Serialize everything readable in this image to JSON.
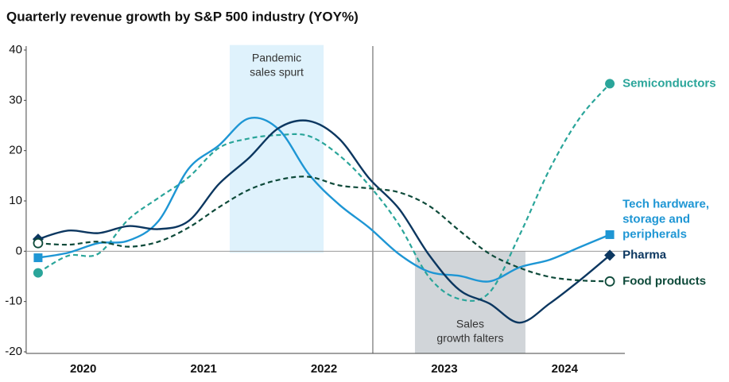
{
  "chart_data": {
    "type": "line",
    "title": "Quarterly revenue growth by S&P 500 industry (YOY%)",
    "x": [
      2020.125,
      2020.375,
      2020.625,
      2020.875,
      2021.125,
      2021.375,
      2021.625,
      2021.875,
      2022.125,
      2022.375,
      2022.625,
      2022.875,
      2023.125,
      2023.375,
      2023.625,
      2023.875,
      2024.125,
      2024.375,
      2024.625,
      2024.875
    ],
    "xlim": [
      2020,
      2025
    ],
    "xticks": [
      {
        "value": 2020.5,
        "label": "2020"
      },
      {
        "value": 2021.5,
        "label": "2021"
      },
      {
        "value": 2022.5,
        "label": "2022"
      },
      {
        "value": 2023.5,
        "label": "2023"
      },
      {
        "value": 2024.5,
        "label": "2024"
      }
    ],
    "ylim": [
      -20,
      40
    ],
    "yticks": [
      -20,
      -10,
      0,
      10,
      20,
      30,
      40
    ],
    "series": [
      {
        "name": "Semiconductors",
        "color": "#2aa59a",
        "dash": true,
        "marker": "circle",
        "values": [
          -4.3,
          -0.9,
          -0.5,
          6.3,
          10.6,
          14.7,
          20.5,
          22.4,
          23.1,
          22.9,
          19.1,
          13.1,
          5.2,
          -5.2,
          -9.5,
          -8.2,
          3.2,
          16.3,
          26.5,
          33.3
        ]
      },
      {
        "name": "Tech hardware, storage and peripherals",
        "color": "#1e96d4",
        "dash": false,
        "marker": "square",
        "values": [
          -1.3,
          -0.3,
          1.6,
          2.1,
          6.0,
          16.4,
          21.0,
          26.4,
          24.2,
          15.3,
          9.3,
          4.7,
          -0.6,
          -4.1,
          -4.9,
          -6.0,
          -3.2,
          -1.7,
          0.8,
          3.3
        ]
      },
      {
        "name": "Pharma",
        "color": "#0c3760",
        "dash": false,
        "marker": "diamond",
        "values": [
          2.4,
          4.1,
          3.6,
          5.0,
          4.4,
          6.0,
          13.3,
          18.5,
          24.5,
          25.9,
          22.4,
          14.5,
          8.4,
          -0.8,
          -7.7,
          -10.4,
          -14.2,
          -10.4,
          -5.8,
          -0.8
        ]
      },
      {
        "name": "Food products",
        "color": "#0e4a3a",
        "dash": true,
        "marker": "open-circle",
        "values": [
          1.6,
          1.3,
          1.9,
          0.9,
          1.9,
          4.7,
          8.7,
          12.2,
          14.2,
          14.8,
          13.1,
          12.5,
          11.7,
          9.0,
          4.1,
          -0.5,
          -3.3,
          -5.1,
          -5.8,
          -6.0
        ]
      }
    ],
    "annotations": [
      {
        "lines": [
          "Pandemic",
          "sales spurt"
        ],
        "x0": 2021.717,
        "x1": 2022.497,
        "y0": 0,
        "y1": 41,
        "color": "#dff2fc"
      },
      {
        "lines": [
          "Sales",
          "growth falters"
        ],
        "x0": 2023.256,
        "x1": 2024.174,
        "y0": -20,
        "y1": 0,
        "color": "#d1d5d9"
      }
    ],
    "divider_x": 2022.906
  }
}
